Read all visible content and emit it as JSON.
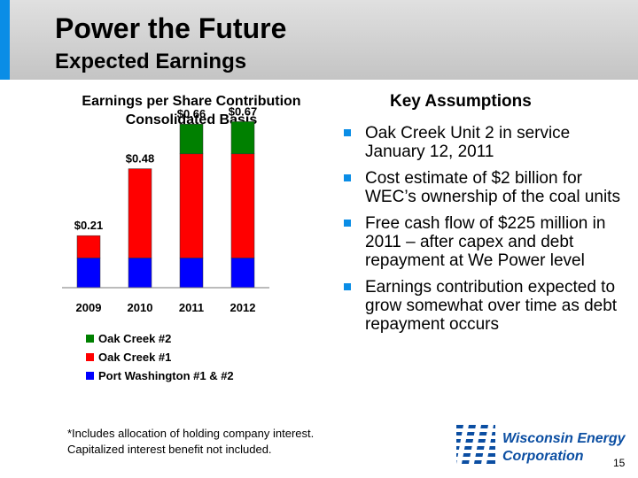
{
  "header": {
    "title": "Power the Future",
    "subtitle": "Expected Earnings"
  },
  "chart_data": {
    "type": "bar",
    "stacked": true,
    "title_lines": [
      "Earnings per Share Contribution",
      "Consolidated Basis"
    ],
    "categories": [
      "2009",
      "2010",
      "2011",
      "2012"
    ],
    "series": [
      {
        "name": "Port Washington #1 & #2",
        "values": [
          0.12,
          0.12,
          0.12,
          0.12
        ],
        "color": "#0000ff"
      },
      {
        "name": "Oak Creek #1",
        "values": [
          0.09,
          0.36,
          0.42,
          0.42
        ],
        "color": "#ff0000"
      },
      {
        "name": "Oak Creek #2",
        "values": [
          0,
          0,
          0.12,
          0.13
        ],
        "color": "#008000"
      }
    ],
    "total_labels": [
      "$0.21",
      "$0.48",
      "$0.66",
      "$0.67"
    ],
    "ylim": [
      0,
      0.8
    ],
    "grid": false,
    "legend_position": "bottom"
  },
  "assumptions": {
    "title": "Key Assumptions",
    "items": [
      "Oak Creek Unit 2 in service January 12, 2011",
      "Cost estimate of $2 billion for WEC’s ownership of the coal units",
      "Free cash flow of $225 million in 2011 – after capex and debt repayment at We Power level",
      "Earnings contribution expected to grow somewhat over time as debt repayment occurs"
    ]
  },
  "footnote": {
    "line1": "*Includes allocation of holding company interest.",
    "line2": "Capitalized interest benefit not included."
  },
  "logo": {
    "line1": "Wisconsin Energy",
    "line2": "Corporation"
  },
  "page_number": "15",
  "colors": {
    "accent": "#0a8de6",
    "bullet": "#0a8de6",
    "logo_blue": "#0b4ea2"
  }
}
